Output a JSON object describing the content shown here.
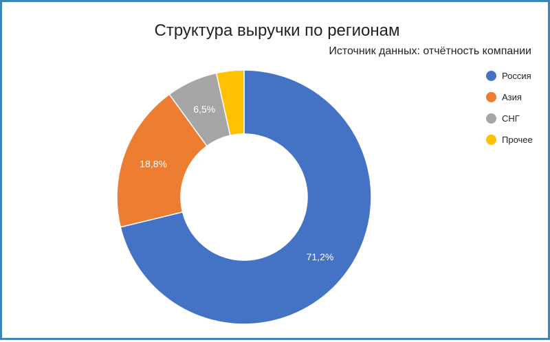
{
  "chart_data": {
    "type": "pie",
    "title": "Структура выручки по регионам",
    "subtitle": "Источник данных: отчётность компании",
    "legend_position": "right",
    "donut": true,
    "categories": [
      "Россия",
      "Азия",
      "СНГ",
      "Прочее"
    ],
    "values": [
      71.2,
      18.8,
      6.5,
      3.5
    ],
    "data_labels": [
      "71,2%",
      "18,8%",
      "6,5%",
      ""
    ],
    "colors": [
      "#4472c4",
      "#ed7d31",
      "#a5a5a5",
      "#ffc000"
    ]
  }
}
